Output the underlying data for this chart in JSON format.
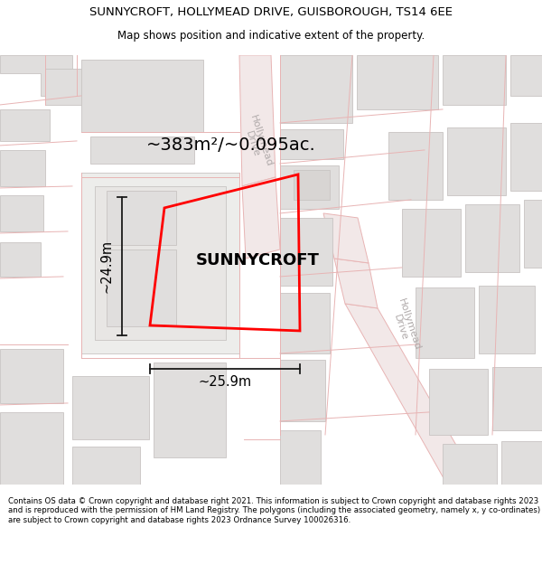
{
  "title": "SUNNYCROFT, HOLLYMEAD DRIVE, GUISBOROUGH, TS14 6EE",
  "subtitle": "Map shows position and indicative extent of the property.",
  "property_label": "SUNNYCROFT",
  "area_label": "~383m²/~0.095ac.",
  "width_label": "~25.9m",
  "height_label": "~24.9m",
  "footer": "Contains OS data © Crown copyright and database right 2021. This information is subject to Crown copyright and database rights 2023 and is reproduced with the permission of HM Land Registry. The polygons (including the associated geometry, namely x, y co-ordinates) are subject to Crown copyright and database rights 2023 Ordnance Survey 100026316.",
  "bg_color": "#ffffff",
  "map_bg": "#f5f4f2",
  "road_line_color": "#e8b4b4",
  "building_fill": "#e0dedd",
  "building_outline": "#c8c4c2",
  "plot_color": "#ff0000",
  "plot_linewidth": 2.0,
  "dim_color": "#1a1a1a",
  "title_fontsize": 9.5,
  "subtitle_fontsize": 8.5,
  "area_fontsize": 14,
  "property_fontsize": 13,
  "footer_fontsize": 6.2,
  "dim_fontsize": 10.5,
  "road_label_color": "#b0aaaa",
  "road_label_fontsize": 8
}
